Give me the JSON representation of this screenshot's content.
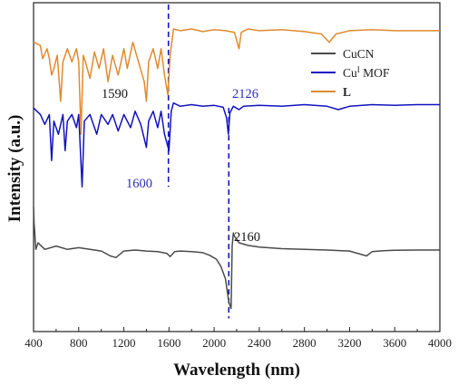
{
  "chart_data": {
    "type": "line",
    "xlabel": "Wavelength (nm)",
    "ylabel": "Intensity (a.u.)",
    "xlim": [
      400,
      4000
    ],
    "x_ticks": [
      400,
      800,
      1200,
      1600,
      2000,
      2400,
      2800,
      3200,
      3600,
      4000
    ],
    "x_tick_labels": [
      "400",
      "800",
      "1200",
      "1600",
      "2000",
      "2400",
      "2800",
      "3200",
      "3600",
      "4000"
    ],
    "y_ticks_shown": false,
    "grid": false,
    "legend_position": "right, near top",
    "legend": [
      {
        "label": "CuCN",
        "color": "#4a4a4a"
      },
      {
        "label_main": "Cu",
        "label_sup": "I",
        "label_rest": " MOF",
        "color": "#1212c0"
      },
      {
        "label": "L",
        "bold": true,
        "color": "#e08a2e"
      }
    ],
    "series": [
      {
        "name": "L",
        "color": "#e08a2e",
        "points": [
          [
            400,
            0.88
          ],
          [
            460,
            0.87
          ],
          [
            480,
            0.83
          ],
          [
            520,
            0.86
          ],
          [
            540,
            0.83
          ],
          [
            560,
            0.78
          ],
          [
            580,
            0.8
          ],
          [
            610,
            0.84
          ],
          [
            640,
            0.7
          ],
          [
            660,
            0.82
          ],
          [
            700,
            0.86
          ],
          [
            740,
            0.82
          ],
          [
            780,
            0.86
          ],
          [
            800,
            0.82
          ],
          [
            820,
            0.6
          ],
          [
            840,
            0.84
          ],
          [
            860,
            0.82
          ],
          [
            900,
            0.77
          ],
          [
            940,
            0.85
          ],
          [
            980,
            0.8
          ],
          [
            1020,
            0.86
          ],
          [
            1060,
            0.76
          ],
          [
            1100,
            0.84
          ],
          [
            1150,
            0.78
          ],
          [
            1200,
            0.86
          ],
          [
            1230,
            0.8
          ],
          [
            1280,
            0.88
          ],
          [
            1330,
            0.82
          ],
          [
            1380,
            0.76
          ],
          [
            1400,
            0.7
          ],
          [
            1420,
            0.82
          ],
          [
            1460,
            0.86
          ],
          [
            1500,
            0.8
          ],
          [
            1530,
            0.86
          ],
          [
            1560,
            0.78
          ],
          [
            1590,
            0.72
          ],
          [
            1610,
            0.84
          ],
          [
            1640,
            0.92
          ],
          [
            1700,
            0.915
          ],
          [
            1800,
            0.92
          ],
          [
            1900,
            0.912
          ],
          [
            2000,
            0.918
          ],
          [
            2100,
            0.915
          ],
          [
            2180,
            0.91
          ],
          [
            2220,
            0.86
          ],
          [
            2240,
            0.91
          ],
          [
            2300,
            0.92
          ],
          [
            2400,
            0.915
          ],
          [
            2600,
            0.918
          ],
          [
            2800,
            0.912
          ],
          [
            2950,
            0.905
          ],
          [
            3020,
            0.88
          ],
          [
            3080,
            0.905
          ],
          [
            3200,
            0.915
          ],
          [
            3400,
            0.918
          ],
          [
            3600,
            0.915
          ],
          [
            3800,
            0.915
          ],
          [
            4000,
            0.915
          ]
        ]
      },
      {
        "name": "Cuᴵ MOF",
        "color": "#1212c0",
        "points": [
          [
            400,
            0.68
          ],
          [
            460,
            0.66
          ],
          [
            500,
            0.63
          ],
          [
            540,
            0.66
          ],
          [
            560,
            0.52
          ],
          [
            580,
            0.64
          ],
          [
            620,
            0.6
          ],
          [
            660,
            0.66
          ],
          [
            680,
            0.55
          ],
          [
            700,
            0.64
          ],
          [
            740,
            0.66
          ],
          [
            780,
            0.62
          ],
          [
            800,
            0.66
          ],
          [
            830,
            0.44
          ],
          [
            850,
            0.64
          ],
          [
            900,
            0.66
          ],
          [
            960,
            0.6
          ],
          [
            1000,
            0.66
          ],
          [
            1060,
            0.63
          ],
          [
            1100,
            0.66
          ],
          [
            1150,
            0.61
          ],
          [
            1200,
            0.66
          ],
          [
            1260,
            0.62
          ],
          [
            1300,
            0.67
          ],
          [
            1350,
            0.63
          ],
          [
            1400,
            0.56
          ],
          [
            1420,
            0.64
          ],
          [
            1460,
            0.67
          ],
          [
            1500,
            0.62
          ],
          [
            1530,
            0.67
          ],
          [
            1560,
            0.6
          ],
          [
            1600,
            0.55
          ],
          [
            1620,
            0.67
          ],
          [
            1640,
            0.695
          ],
          [
            1700,
            0.685
          ],
          [
            1800,
            0.69
          ],
          [
            1900,
            0.685
          ],
          [
            2000,
            0.688
          ],
          [
            2080,
            0.682
          ],
          [
            2110,
            0.65
          ],
          [
            2126,
            0.6
          ],
          [
            2140,
            0.665
          ],
          [
            2170,
            0.685
          ],
          [
            2220,
            0.675
          ],
          [
            2260,
            0.685
          ],
          [
            2400,
            0.688
          ],
          [
            2600,
            0.685
          ],
          [
            2800,
            0.69
          ],
          [
            3000,
            0.685
          ],
          [
            3100,
            0.675
          ],
          [
            3200,
            0.685
          ],
          [
            3400,
            0.69
          ],
          [
            3600,
            0.688
          ],
          [
            3800,
            0.69
          ],
          [
            4000,
            0.69
          ]
        ]
      },
      {
        "name": "CuCN",
        "color": "#4a4a4a",
        "points": [
          [
            400,
            0.38
          ],
          [
            405,
            0.33
          ],
          [
            420,
            0.25
          ],
          [
            440,
            0.27
          ],
          [
            500,
            0.25
          ],
          [
            600,
            0.26
          ],
          [
            700,
            0.25
          ],
          [
            800,
            0.255
          ],
          [
            900,
            0.25
          ],
          [
            1000,
            0.245
          ],
          [
            1080,
            0.23
          ],
          [
            1130,
            0.225
          ],
          [
            1200,
            0.245
          ],
          [
            1300,
            0.248
          ],
          [
            1400,
            0.245
          ],
          [
            1500,
            0.243
          ],
          [
            1580,
            0.238
          ],
          [
            1610,
            0.228
          ],
          [
            1650,
            0.243
          ],
          [
            1700,
            0.245
          ],
          [
            1800,
            0.243
          ],
          [
            1900,
            0.24
          ],
          [
            1960,
            0.232
          ],
          [
            2020,
            0.22
          ],
          [
            2060,
            0.198
          ],
          [
            2100,
            0.16
          ],
          [
            2130,
            0.09
          ],
          [
            2150,
            0.07
          ],
          [
            2160,
            0.26
          ],
          [
            2170,
            0.3
          ],
          [
            2180,
            0.29
          ],
          [
            2220,
            0.27
          ],
          [
            2300,
            0.262
          ],
          [
            2400,
            0.257
          ],
          [
            2600,
            0.252
          ],
          [
            2800,
            0.25
          ],
          [
            3000,
            0.248
          ],
          [
            3200,
            0.245
          ],
          [
            3350,
            0.23
          ],
          [
            3400,
            0.243
          ],
          [
            3500,
            0.246
          ],
          [
            3600,
            0.247
          ],
          [
            3800,
            0.248
          ],
          [
            4000,
            0.248
          ]
        ]
      }
    ],
    "annotations": [
      {
        "text": "1590",
        "color": "#111111"
      },
      {
        "text": "1600",
        "color": "#2b2bb8"
      },
      {
        "text": "2126",
        "color": "#2b2bb8"
      },
      {
        "text": "2160",
        "color": "#111111"
      }
    ],
    "reference_lines": [
      {
        "x": 1595,
        "y_top": 0.995,
        "y_bottom": 0.44,
        "color": "#1212c0",
        "style": "dashed"
      },
      {
        "x": 2130,
        "y_top": 0.68,
        "y_bottom": 0.04,
        "color": "#1212c0",
        "style": "dashed"
      }
    ]
  }
}
